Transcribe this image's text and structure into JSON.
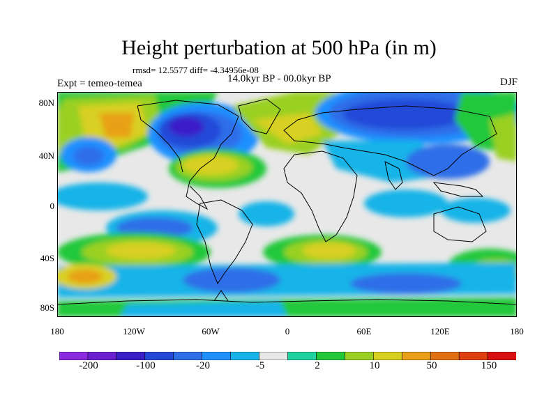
{
  "title": "Height perturbation at 500 hPa (in m)",
  "stats": "rmsd= 12.5577 diff= -4.34956e-08",
  "left_label": "Expt = temeo-temea",
  "center_label": "14.0kyr BP - 00.0kyr BP",
  "right_label": "DJF",
  "y_ticks": [
    "80N",
    "40N",
    "0",
    "40S",
    "80S"
  ],
  "x_ticks": [
    "180",
    "120W",
    "60W",
    "0",
    "60E",
    "120E",
    "180"
  ],
  "colorbar": {
    "colors": [
      "#8a2be2",
      "#6a20d0",
      "#3a1fc8",
      "#2448d8",
      "#2f6ee8",
      "#1e90ff",
      "#16b4e8",
      "#e8e8e8",
      "#1ed2a0",
      "#22c83a",
      "#9ad024",
      "#d8d020",
      "#e8a018",
      "#e07010",
      "#e04010",
      "#d81010"
    ],
    "labels": [
      "-200",
      "-100",
      "-20",
      "-5",
      "2",
      "10",
      "50",
      "150"
    ]
  },
  "map": {
    "background_color": "#e8e8e8",
    "coastline_color": "#000000"
  }
}
